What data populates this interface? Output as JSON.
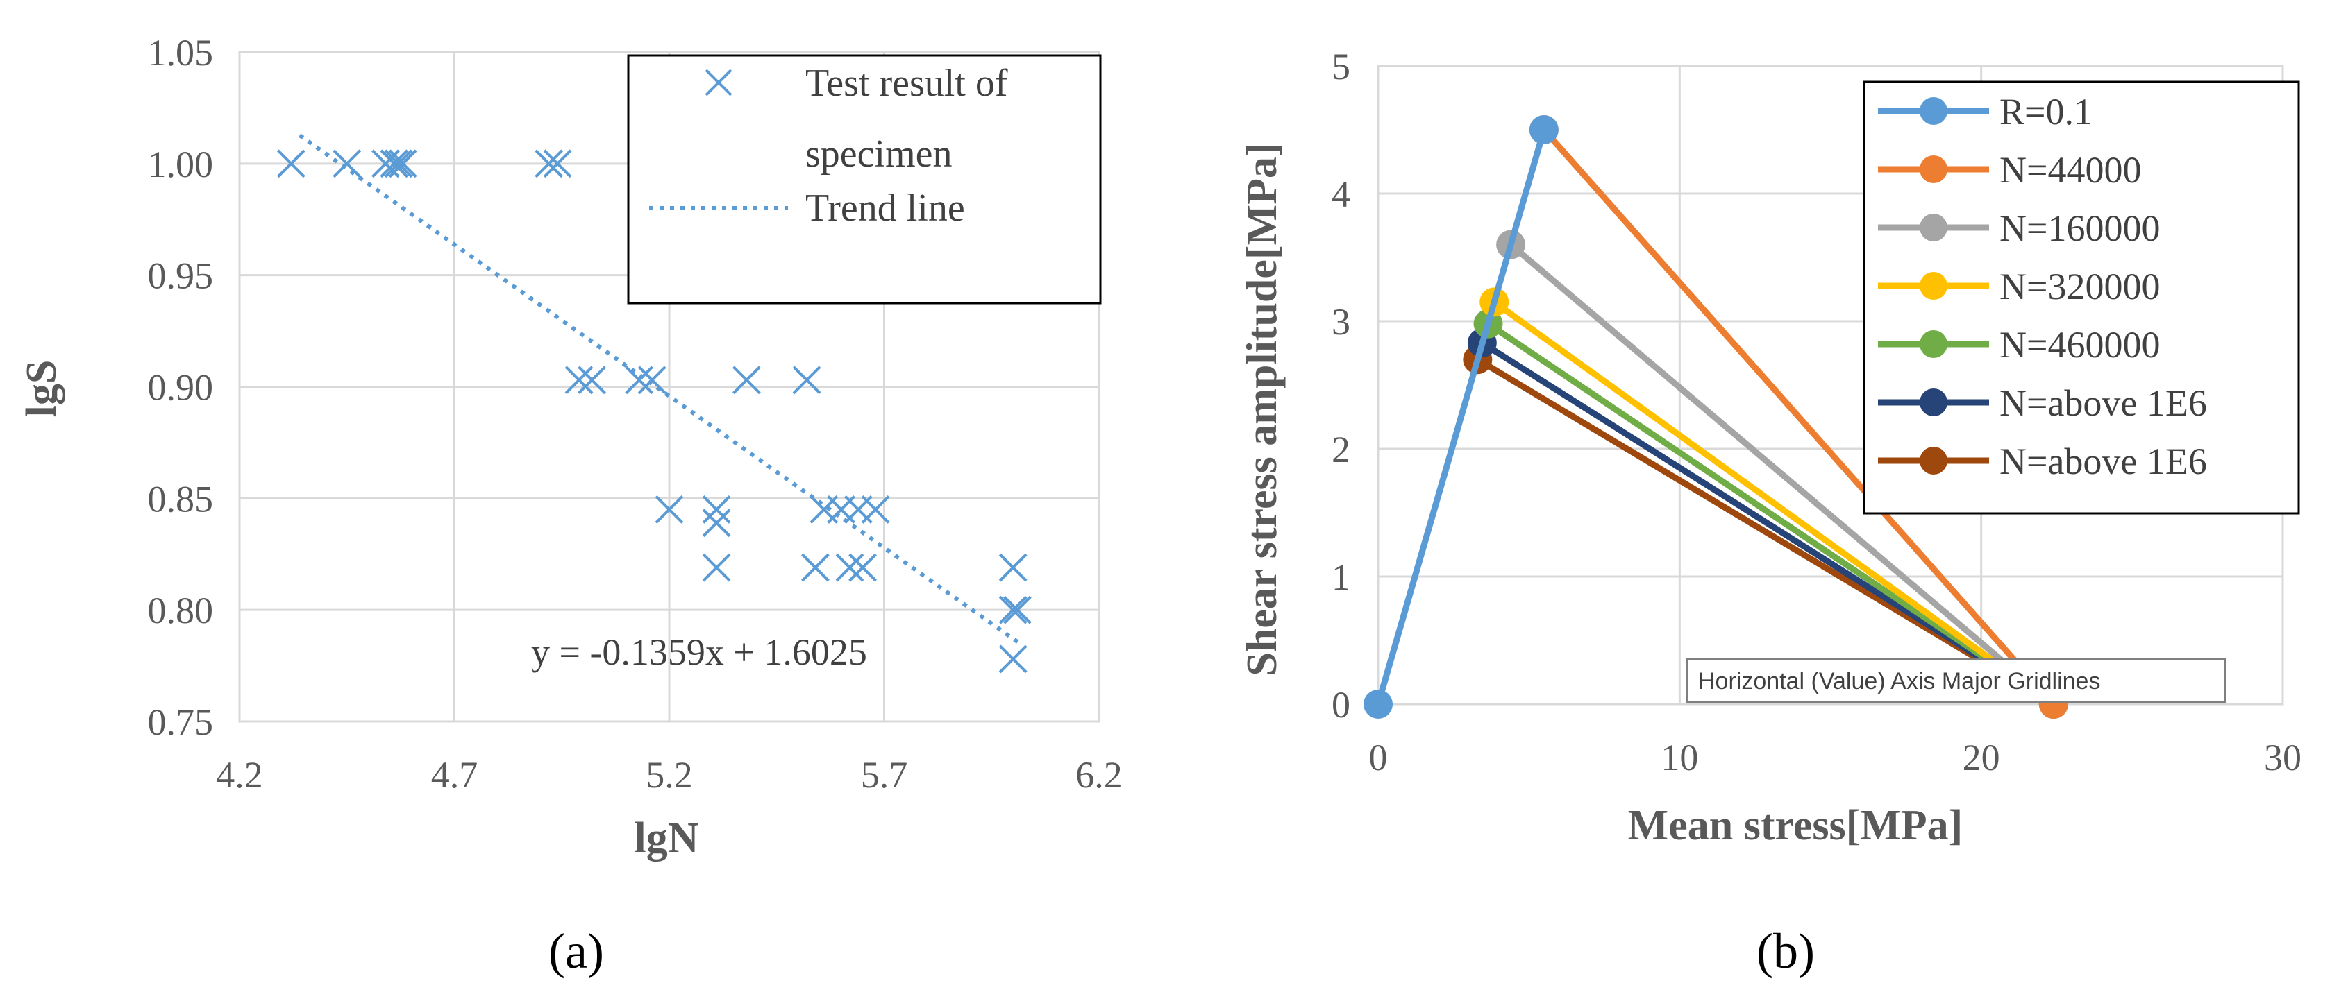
{
  "chart_data": [
    {
      "type": "scatter",
      "panel_label": "(a)",
      "xlabel": "lgN",
      "ylabel": "lgS",
      "xlim": [
        4.2,
        6.2
      ],
      "ylim": [
        0.75,
        1.05
      ],
      "xticks": [
        "4.2",
        "4.7",
        "5.2",
        "5.7",
        "6.2"
      ],
      "yticks": [
        "0.75",
        "0.80",
        "0.85",
        "0.90",
        "0.95",
        "1.00",
        "1.05"
      ],
      "grid": true,
      "legend_position": "top-right",
      "series": [
        {
          "name": "Test result of specimen",
          "name_lines": [
            "Test result of",
            "specimen"
          ],
          "marker": "x",
          "color": "#5b9bd5",
          "points": [
            [
              4.32,
              1.0
            ],
            [
              4.45,
              1.0
            ],
            [
              4.54,
              1.0
            ],
            [
              4.56,
              1.0
            ],
            [
              4.57,
              1.0
            ],
            [
              4.58,
              1.0
            ],
            [
              4.92,
              1.0
            ],
            [
              4.94,
              1.0
            ],
            [
              4.99,
              0.903
            ],
            [
              5.02,
              0.903
            ],
            [
              5.13,
              0.903
            ],
            [
              5.16,
              0.903
            ],
            [
              5.38,
              0.903
            ],
            [
              5.52,
              0.903
            ],
            [
              5.2,
              0.845
            ],
            [
              5.31,
              0.845
            ],
            [
              5.31,
              0.839
            ],
            [
              5.31,
              0.819
            ],
            [
              5.56,
              0.845
            ],
            [
              5.6,
              0.845
            ],
            [
              5.64,
              0.845
            ],
            [
              5.68,
              0.845
            ],
            [
              5.54,
              0.819
            ],
            [
              5.62,
              0.819
            ],
            [
              5.65,
              0.819
            ],
            [
              6.0,
              0.819
            ],
            [
              6.0,
              0.8
            ],
            [
              6.01,
              0.8
            ],
            [
              6.0,
              0.778
            ]
          ]
        },
        {
          "name": "Trend line",
          "style": "dotted",
          "color": "#5b9bd5",
          "slope": -0.1359,
          "intercept": 1.6025,
          "x_range": [
            4.34,
            6.02
          ]
        }
      ],
      "annotation": "y = -0.1359x + 1.6025"
    },
    {
      "type": "line",
      "panel_label": "(b)",
      "xlabel": "Mean stress[MPa]",
      "ylabel": "Shear stress amplitude[MPa]",
      "xlim": [
        0,
        30
      ],
      "ylim": [
        0,
        5
      ],
      "xticks": [
        "0",
        "10",
        "20",
        "30"
      ],
      "yticks": [
        "0",
        "1",
        "2",
        "3",
        "4",
        "5"
      ],
      "grid": true,
      "legend_position": "top-right",
      "tooltip": "Horizontal (Value) Axis Major Gridlines",
      "series": [
        {
          "name": "R=0.1",
          "color": "#5b9bd5",
          "points": [
            [
              0,
              0
            ],
            [
              5.5,
              4.5
            ]
          ]
        },
        {
          "name": "N=44000",
          "color": "#ed7d31",
          "points": [
            [
              5.5,
              4.5
            ],
            [
              22.4,
              0
            ]
          ]
        },
        {
          "name": "N=160000",
          "color": "#a5a5a5",
          "points": [
            [
              4.4,
              3.6
            ],
            [
              22.4,
              0
            ]
          ]
        },
        {
          "name": "N=320000",
          "color": "#ffc000",
          "points": [
            [
              3.85,
              3.15
            ],
            [
              22.4,
              0
            ]
          ]
        },
        {
          "name": "N=460000",
          "color": "#70ad47",
          "points": [
            [
              3.65,
              2.98
            ],
            [
              22.4,
              0
            ]
          ]
        },
        {
          "name": "N=above 1E6",
          "color": "#264478",
          "points": [
            [
              3.45,
              2.83
            ],
            [
              22.4,
              0
            ]
          ]
        },
        {
          "name": "N=above 1E6",
          "color": "#9e480e",
          "points": [
            [
              3.3,
              2.7
            ],
            [
              22.4,
              0
            ]
          ]
        }
      ]
    }
  ]
}
